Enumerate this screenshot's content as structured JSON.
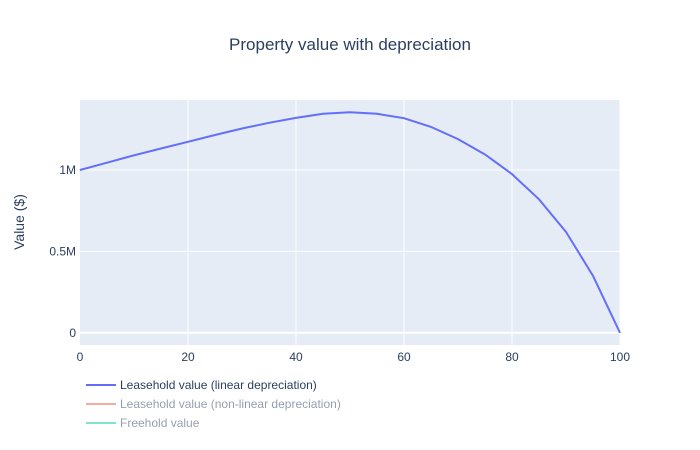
{
  "chart_data": {
    "type": "line",
    "title": "Property value with depreciation",
    "xlabel": "",
    "ylabel": "Value ($)",
    "xlim": [
      0,
      100
    ],
    "ylim": [
      -75000,
      1430000
    ],
    "x_ticks": [
      0,
      20,
      40,
      60,
      80,
      100
    ],
    "x_tick_labels": [
      "0",
      "20",
      "40",
      "60",
      "80",
      "100"
    ],
    "y_ticks": [
      0,
      500000,
      1000000
    ],
    "y_tick_labels": [
      "0",
      "0.5M",
      "1M"
    ],
    "grid": true,
    "legend_position": "bottom-left",
    "series": [
      {
        "name": "Leasehold value (linear depreciation)",
        "color": "#636efa",
        "visible": true,
        "x": [
          0,
          5,
          10,
          15,
          20,
          25,
          30,
          35,
          40,
          45,
          50,
          55,
          60,
          65,
          70,
          75,
          80,
          85,
          90,
          95,
          100
        ],
        "y": [
          1000000,
          1045000,
          1090000,
          1132000,
          1173000,
          1215000,
          1255000,
          1290000,
          1320000,
          1345000,
          1355000,
          1345000,
          1318000,
          1265000,
          1190000,
          1095000,
          975000,
          820000,
          620000,
          350000,
          0
        ]
      },
      {
        "name": "Leasehold value (non-linear depreciation)",
        "color": "#ef553b",
        "visible": false,
        "x": [],
        "y": []
      },
      {
        "name": "Freehold value",
        "color": "#00cc96",
        "visible": false,
        "x": [],
        "y": []
      }
    ]
  }
}
